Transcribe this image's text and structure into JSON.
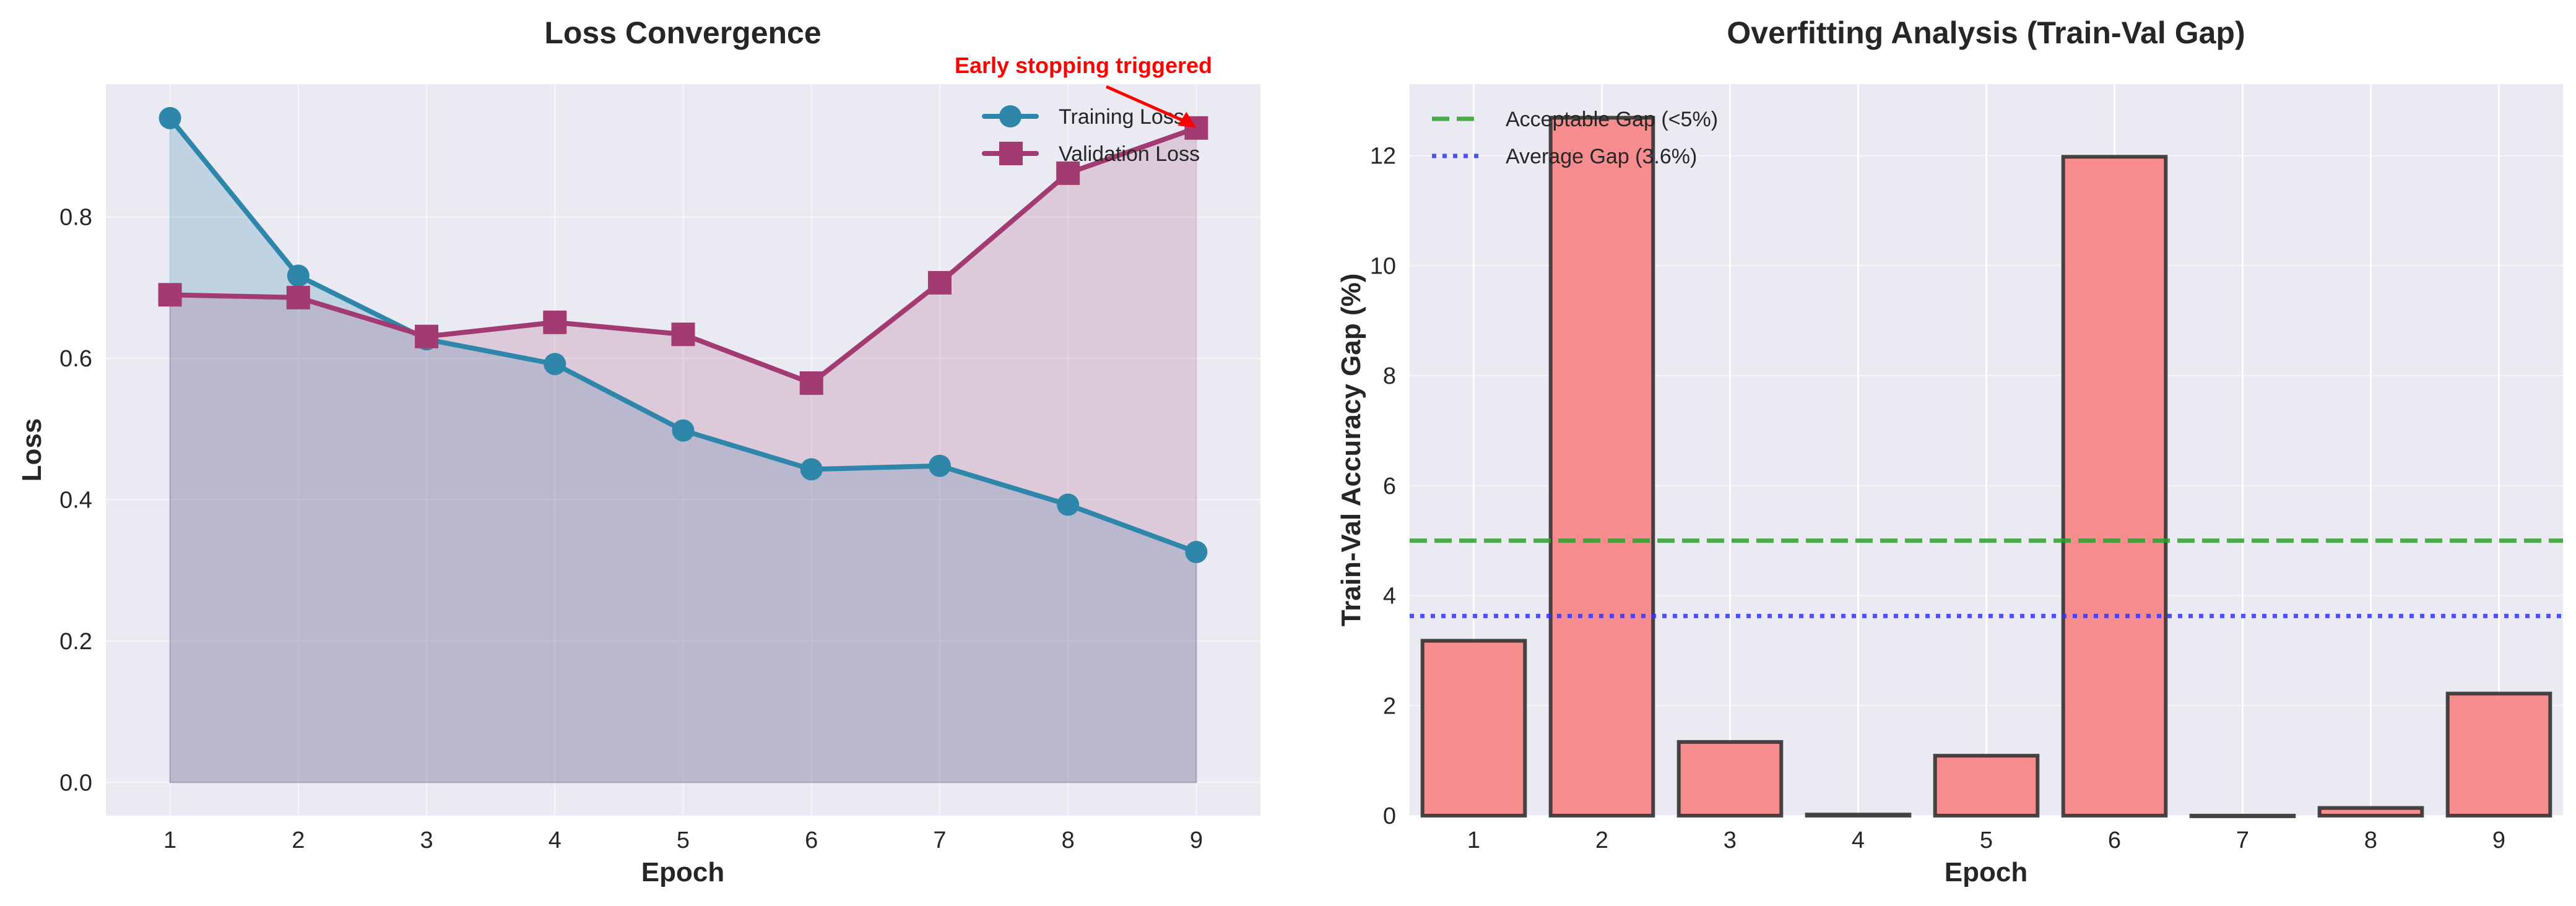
{
  "chart_data": [
    {
      "type": "line",
      "title": "Loss Convergence",
      "xlabel": "Epoch",
      "ylabel": "Loss",
      "x": [
        1,
        2,
        3,
        4,
        5,
        6,
        7,
        8,
        9
      ],
      "xlim": [
        0.5,
        9.5
      ],
      "ylim": [
        -0.047,
        0.988
      ],
      "xticks": [
        "1",
        "2",
        "3",
        "4",
        "5",
        "6",
        "7",
        "8",
        "9"
      ],
      "yticks": [
        "0.0",
        "0.2",
        "0.4",
        "0.6",
        "0.8"
      ],
      "ytick_values": [
        0,
        0.2,
        0.4,
        0.6,
        0.8
      ],
      "grid": true,
      "legend_position": "top-right",
      "series": [
        {
          "name": "Training Loss",
          "color": "#2E86AB",
          "marker": "circle",
          "fill": true,
          "values": [
            0.94,
            0.717,
            0.627,
            0.592,
            0.498,
            0.443,
            0.448,
            0.393,
            0.326
          ]
        },
        {
          "name": "Validation Loss",
          "color": "#A23B72",
          "marker": "square",
          "fill": true,
          "values": [
            0.69,
            0.686,
            0.631,
            0.651,
            0.634,
            0.565,
            0.707,
            0.862,
            0.926
          ]
        }
      ],
      "annotation": {
        "text": "Early stopping triggered",
        "color": "#FF0000",
        "x": 9,
        "y": 0.926
      }
    },
    {
      "type": "bar",
      "title": "Overfitting Analysis (Train-Val Gap)",
      "xlabel": "Epoch",
      "ylabel": "Train-Val Accuracy Gap (%)",
      "categories": [
        "1",
        "2",
        "3",
        "4",
        "5",
        "6",
        "7",
        "8",
        "9"
      ],
      "values": [
        3.18,
        12.69,
        1.34,
        0.02,
        1.09,
        11.98,
        0.0,
        0.14,
        2.22
      ],
      "bar_color": "#F78C8F",
      "edge_color": "#333333",
      "xlim": [
        0.5,
        9.5
      ],
      "ylim": [
        0,
        13.3
      ],
      "yticks": [
        "0",
        "2",
        "4",
        "6",
        "8",
        "10",
        "12"
      ],
      "ytick_values": [
        0,
        2,
        4,
        6,
        8,
        10,
        12
      ],
      "grid": true,
      "legend_position": "top-left",
      "reference_lines": [
        {
          "name": "Acceptable Gap (<5%)",
          "value": 5,
          "color": "#2CA02C",
          "style": "dashed"
        },
        {
          "name": "Average Gap (3.6%)",
          "value": 3.63,
          "color": "#3333FF",
          "style": "dotted"
        }
      ]
    }
  ]
}
